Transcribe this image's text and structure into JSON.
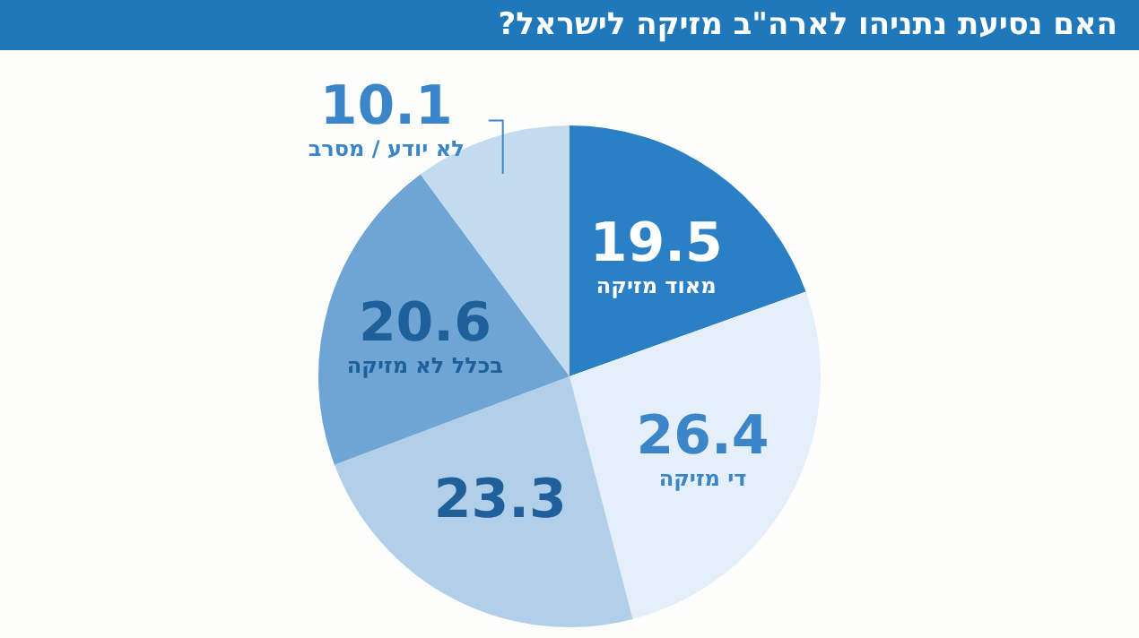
{
  "chart_data": {
    "type": "pie",
    "title": "האם נסיעת נתניהו לארה\"ב מזיקה לישראל?",
    "categories": [
      "מאוד מזיקה",
      "די מזיקה",
      null,
      "בכלל לא מזיקה",
      "לא יודע / מסרב"
    ],
    "values": [
      19.5,
      26.4,
      23.3,
      20.6,
      10.1
    ],
    "colors": [
      "#2b7fc4",
      "#e5eff9",
      "#b2cfe9",
      "#6fa5d5",
      "#c3dbee"
    ],
    "data_labels": true,
    "legend": false
  }
}
